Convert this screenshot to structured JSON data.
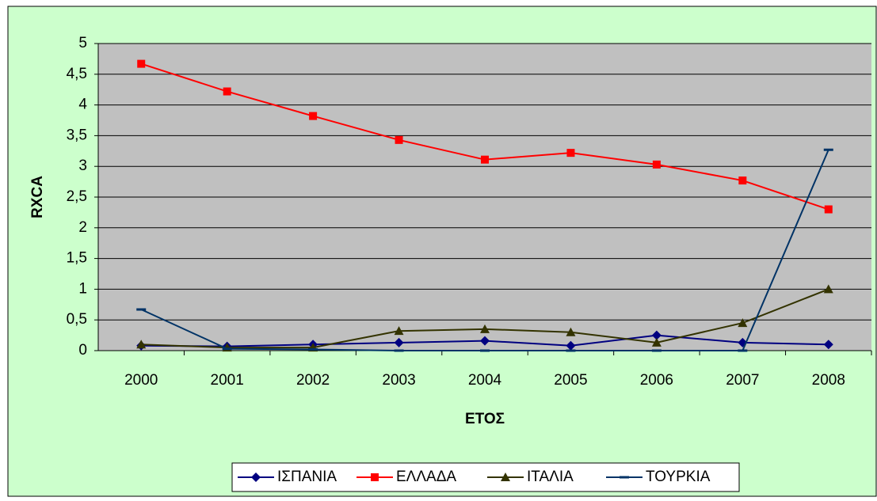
{
  "chart_data": {
    "type": "line",
    "x_label": "ΕΤΟΣ",
    "y_label": "RXCA",
    "categories": [
      "2000",
      "2001",
      "2002",
      "2003",
      "2004",
      "2005",
      "2006",
      "2007",
      "2008"
    ],
    "series": [
      {
        "name": "ΙΣΠΑΝΙΑ",
        "color": "#000080",
        "marker": "diamond",
        "values": [
          0.08,
          0.07,
          0.1,
          0.13,
          0.16,
          0.08,
          0.25,
          0.13,
          0.1
        ]
      },
      {
        "name": "ΕΛΛΑΔΑ",
        "color": "#ff0000",
        "marker": "square",
        "values": [
          4.67,
          4.22,
          3.82,
          3.43,
          3.11,
          3.22,
          3.03,
          2.77,
          2.3
        ]
      },
      {
        "name": "ΙΤΑΛΙΑ",
        "color": "#333300",
        "marker": "triangle",
        "values": [
          0.1,
          0.05,
          0.05,
          0.32,
          0.35,
          0.3,
          0.13,
          0.45,
          1.0
        ]
      },
      {
        "name": "ΤΟΥΡΚΙΑ",
        "color": "#003366",
        "marker": "dash",
        "values": [
          0.67,
          0.03,
          0.02,
          0,
          0,
          0,
          0,
          0,
          3.27
        ]
      }
    ],
    "ylim": [
      0,
      5
    ],
    "yticks": [
      0,
      {
        "value": 0.5,
        "label": "0,5"
      },
      1,
      {
        "value": 1.5,
        "label": "1,5"
      },
      2,
      {
        "value": 2.5,
        "label": "2,5"
      },
      3,
      {
        "value": 3.5,
        "label": "3,5"
      },
      4,
      {
        "value": 4.5,
        "label": "4,5"
      },
      5
    ],
    "grid": true,
    "legend": "bottom"
  }
}
